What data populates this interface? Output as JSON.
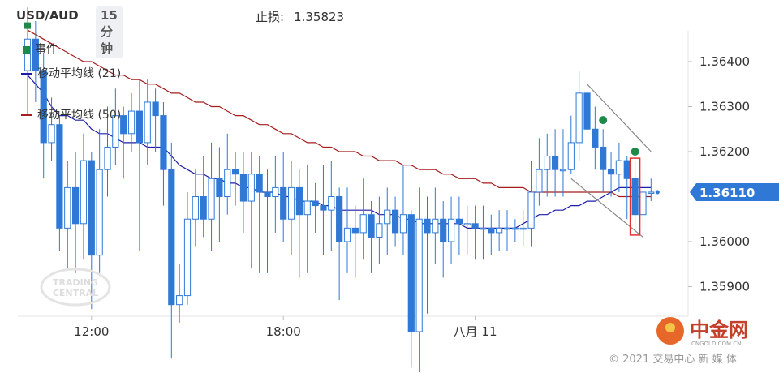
{
  "header": {
    "symbol": "USD/AUD",
    "timeframe": "15分钟",
    "stoploss_label": "止损:",
    "stoploss_value": "1.35823"
  },
  "legend": {
    "events": "事件",
    "ma21": "移动平均线 (21)",
    "ma50": "移动平均线 (50)"
  },
  "colors": {
    "up": "#2f78d6",
    "down": "#2f78d6",
    "ma21": "#1d1da8",
    "ma50": "#a51d1d",
    "event": "#1e8a4a",
    "price_tag": "#2f78d6",
    "highlight": "#e0332f",
    "channel": "#888888"
  },
  "watermark": {
    "line1": "TRADING",
    "line2": "CENTRAL"
  },
  "logo": {
    "name": "中金网",
    "sub": "CNGOLD.COM.CN"
  },
  "footer": "© 2021 交易中心 新 媒 体",
  "chart_data": {
    "type": "candlestick",
    "title": "USD/AUD 15分钟",
    "ylim": [
      1.3584,
      1.3657
    ],
    "y_ticks": [
      "1.36400",
      "1.36300",
      "1.36200",
      "1.36000",
      "1.35900"
    ],
    "x_ticks": [
      {
        "label": "12:00",
        "index": 8
      },
      {
        "label": "18:00",
        "index": 32
      },
      {
        "label": "八月 11",
        "index": 56
      }
    ],
    "current_price": "1.36110",
    "last_price": 1.3611,
    "candles": [
      [
        1.3638,
        1.3645,
        1.3652,
        1.3628
      ],
      [
        1.3645,
        1.3638,
        1.3649,
        1.3631
      ],
      [
        1.3638,
        1.3622,
        1.3642,
        1.3614
      ],
      [
        1.3622,
        1.3626,
        1.3632,
        1.3618
      ],
      [
        1.3626,
        1.3603,
        1.3628,
        1.3598
      ],
      [
        1.3603,
        1.3612,
        1.3618,
        1.3594
      ],
      [
        1.3612,
        1.3604,
        1.362,
        1.3593
      ],
      [
        1.3604,
        1.3618,
        1.3624,
        1.3596
      ],
      [
        1.3618,
        1.3597,
        1.362,
        1.3585
      ],
      [
        1.3597,
        1.3616,
        1.3625,
        1.3593
      ],
      [
        1.3616,
        1.3621,
        1.363,
        1.361
      ],
      [
        1.3621,
        1.3628,
        1.3634,
        1.3617
      ],
      [
        1.3628,
        1.3624,
        1.363,
        1.3614
      ],
      [
        1.3624,
        1.3629,
        1.3633,
        1.362
      ],
      [
        1.3629,
        1.3622,
        1.3636,
        1.3598
      ],
      [
        1.3622,
        1.3631,
        1.3636,
        1.3617
      ],
      [
        1.3631,
        1.3628,
        1.3634,
        1.362
      ],
      [
        1.3628,
        1.3616,
        1.3631,
        1.3608
      ],
      [
        1.3616,
        1.3586,
        1.3622,
        1.3574
      ],
      [
        1.3586,
        1.3588,
        1.3595,
        1.3582
      ],
      [
        1.3588,
        1.3605,
        1.3611,
        1.3586
      ],
      [
        1.3605,
        1.361,
        1.3616,
        1.3599
      ],
      [
        1.361,
        1.3605,
        1.3619,
        1.3601
      ],
      [
        1.3605,
        1.3614,
        1.3622,
        1.3598
      ],
      [
        1.3614,
        1.361,
        1.3621,
        1.36
      ],
      [
        1.361,
        1.3616,
        1.3624,
        1.3606
      ],
      [
        1.3616,
        1.3615,
        1.362,
        1.3608
      ],
      [
        1.3615,
        1.3609,
        1.362,
        1.3602
      ],
      [
        1.3609,
        1.3615,
        1.362,
        1.3594
      ],
      [
        1.3615,
        1.3611,
        1.3619,
        1.3593
      ],
      [
        1.3611,
        1.361,
        1.3616,
        1.3593
      ],
      [
        1.361,
        1.3612,
        1.3619,
        1.3602
      ],
      [
        1.3612,
        1.3605,
        1.362,
        1.36
      ],
      [
        1.3605,
        1.3612,
        1.3618,
        1.3597
      ],
      [
        1.3612,
        1.3606,
        1.3616,
        1.3592
      ],
      [
        1.3606,
        1.3609,
        1.3617,
        1.3593
      ],
      [
        1.3609,
        1.3608,
        1.3613,
        1.3602
      ],
      [
        1.3608,
        1.3607,
        1.3617,
        1.3597
      ],
      [
        1.3607,
        1.361,
        1.3618,
        1.3598
      ],
      [
        1.361,
        1.36,
        1.3612,
        1.3587
      ],
      [
        1.36,
        1.3603,
        1.3612,
        1.3593
      ],
      [
        1.3603,
        1.3602,
        1.3608,
        1.3592
      ],
      [
        1.3602,
        1.3606,
        1.3614,
        1.3596
      ],
      [
        1.3606,
        1.3601,
        1.3609,
        1.3593
      ],
      [
        1.3601,
        1.3604,
        1.361,
        1.3595
      ],
      [
        1.3604,
        1.3607,
        1.3612,
        1.3597
      ],
      [
        1.3607,
        1.3602,
        1.361,
        1.3599
      ],
      [
        1.3602,
        1.3606,
        1.3617,
        1.3597
      ],
      [
        1.3606,
        1.358,
        1.3607,
        1.3572
      ],
      [
        1.358,
        1.3605,
        1.3612,
        1.3571
      ],
      [
        1.3605,
        1.3602,
        1.361,
        1.3584
      ],
      [
        1.3602,
        1.3605,
        1.3612,
        1.3595
      ],
      [
        1.3605,
        1.36,
        1.3609,
        1.3592
      ],
      [
        1.36,
        1.3605,
        1.361,
        1.3595
      ],
      [
        1.3605,
        1.3604,
        1.361,
        1.3597
      ],
      [
        1.3604,
        1.3604,
        1.3608,
        1.3597
      ],
      [
        1.3604,
        1.3603,
        1.3608,
        1.3596
      ],
      [
        1.3603,
        1.3603,
        1.3608,
        1.3596
      ],
      [
        1.3603,
        1.3602,
        1.3606,
        1.3597
      ],
      [
        1.3602,
        1.3603,
        1.3607,
        1.3598
      ],
      [
        1.3603,
        1.3603,
        1.3607,
        1.3598
      ],
      [
        1.3603,
        1.3603,
        1.3605,
        1.36
      ],
      [
        1.3603,
        1.3603,
        1.3607,
        1.3599
      ],
      [
        1.3603,
        1.3611,
        1.3618,
        1.3599
      ],
      [
        1.3611,
        1.3616,
        1.3623,
        1.3608
      ],
      [
        1.3616,
        1.3619,
        1.3624,
        1.361
      ],
      [
        1.3619,
        1.3616,
        1.3625,
        1.361
      ],
      [
        1.3616,
        1.3616,
        1.3625,
        1.361
      ],
      [
        1.3616,
        1.3622,
        1.3628,
        1.3615
      ],
      [
        1.3622,
        1.3633,
        1.3638,
        1.3618
      ],
      [
        1.3633,
        1.3625,
        1.3637,
        1.3618
      ],
      [
        1.3625,
        1.3621,
        1.363,
        1.3616
      ],
      [
        1.3621,
        1.3616,
        1.3625,
        1.3611
      ],
      [
        1.3616,
        1.3615,
        1.362,
        1.361
      ],
      [
        1.3615,
        1.3618,
        1.3622,
        1.3611
      ],
      [
        1.3618,
        1.3614,
        1.3619,
        1.3605
      ],
      [
        1.3614,
        1.3606,
        1.3618,
        1.3602
      ],
      [
        1.3606,
        1.3611,
        1.3616,
        1.3603
      ],
      [
        1.3611,
        1.3611,
        1.3614,
        1.3609
      ]
    ],
    "ma21": [
      1.3637,
      1.3635,
      1.3633,
      1.363,
      1.3628,
      1.3628,
      1.3627,
      1.3627,
      1.3625,
      1.3624,
      1.3624,
      1.3623,
      1.3622,
      1.3622,
      1.3622,
      1.3621,
      1.3621,
      1.3621,
      1.3619,
      1.3617,
      1.3616,
      1.3615,
      1.3615,
      1.3614,
      1.3614,
      1.3613,
      1.3613,
      1.3612,
      1.3612,
      1.3611,
      1.3611,
      1.3611,
      1.361,
      1.361,
      1.3609,
      1.3609,
      1.3609,
      1.3608,
      1.3608,
      1.3607,
      1.3607,
      1.3607,
      1.3607,
      1.3607,
      1.3606,
      1.3606,
      1.3606,
      1.3605,
      1.3605,
      1.3604,
      1.3604,
      1.3604,
      1.3604,
      1.3604,
      1.3604,
      1.3603,
      1.3603,
      1.3603,
      1.3603,
      1.3603,
      1.3603,
      1.3603,
      1.3604,
      1.3605,
      1.3606,
      1.3606,
      1.3607,
      1.3607,
      1.3608,
      1.3608,
      1.3609,
      1.3609,
      1.361,
      1.3611,
      1.3612,
      1.3612,
      1.3612,
      1.3612,
      1.3612
    ],
    "ma50": [
      1.3647,
      1.3646,
      1.3645,
      1.3644,
      1.3643,
      1.3642,
      1.3641,
      1.364,
      1.364,
      1.3639,
      1.3638,
      1.3637,
      1.3637,
      1.3636,
      1.3636,
      1.3635,
      1.3635,
      1.3634,
      1.3633,
      1.3633,
      1.3632,
      1.3631,
      1.3631,
      1.363,
      1.363,
      1.3629,
      1.3628,
      1.3628,
      1.3627,
      1.3626,
      1.3626,
      1.3625,
      1.3624,
      1.3624,
      1.3623,
      1.3622,
      1.3622,
      1.3621,
      1.3621,
      1.362,
      1.362,
      1.362,
      1.3619,
      1.3619,
      1.3618,
      1.3618,
      1.3618,
      1.3617,
      1.3617,
      1.3616,
      1.3616,
      1.3616,
      1.3615,
      1.3615,
      1.3614,
      1.3614,
      1.3614,
      1.3613,
      1.3613,
      1.3612,
      1.3612,
      1.3612,
      1.3612,
      1.3611,
      1.3611,
      1.3611,
      1.3611,
      1.3611,
      1.3611,
      1.3611,
      1.3611,
      1.3611,
      1.3611,
      1.3611,
      1.361,
      1.361,
      1.361,
      1.361,
      1.361
    ],
    "events": [
      {
        "index": 0,
        "price": 1.3648
      },
      {
        "index": 72,
        "price": 1.3627
      },
      {
        "index": 76,
        "price": 1.362
      }
    ],
    "channel": [
      [
        {
          "index": 70,
          "price": 1.3635
        },
        {
          "index": 78,
          "price": 1.362
        }
      ],
      [
        {
          "index": 68,
          "price": 1.3614
        },
        {
          "index": 77,
          "price": 1.3601
        }
      ]
    ],
    "highlight_indices": [
      76
    ]
  }
}
